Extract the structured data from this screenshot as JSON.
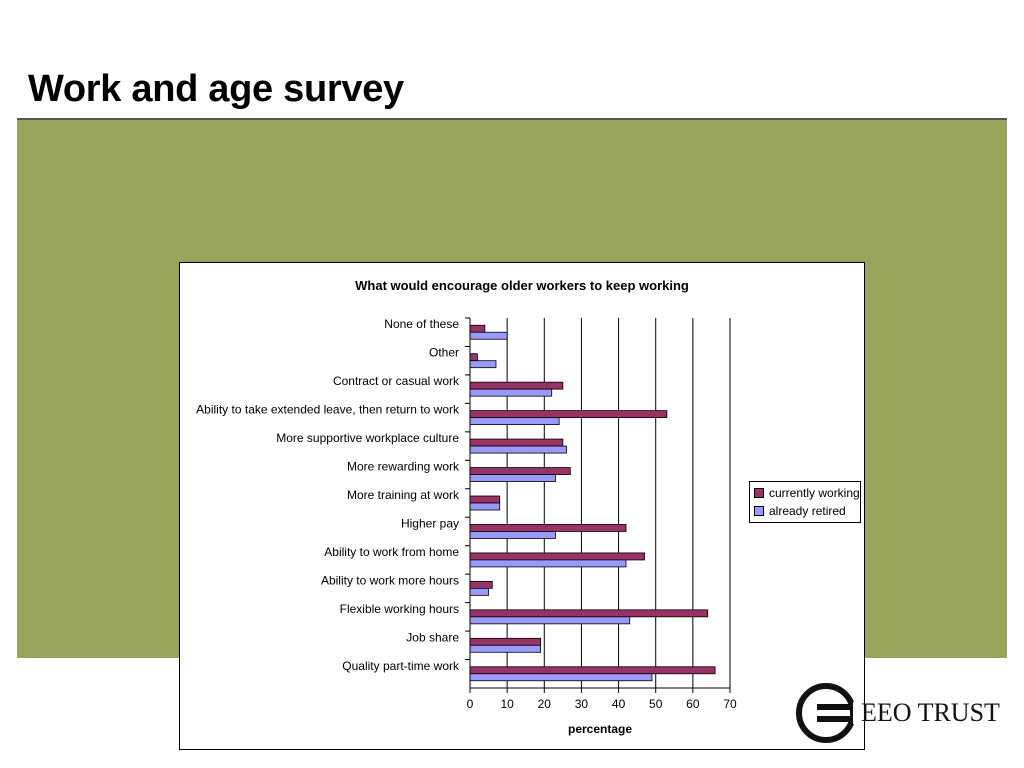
{
  "slide": {
    "title": "Work and age survey",
    "band_color": "#9aa55c"
  },
  "logo": {
    "text": "EEO TRUST",
    "icon": "eeo-trust-e-logo-icon"
  },
  "chart_data": {
    "type": "bar",
    "orientation": "horizontal",
    "title": "What would encourage older workers to keep working",
    "xlabel": "percentage",
    "ylabel": "",
    "xlim": [
      0,
      70
    ],
    "xticks": [
      0,
      10,
      20,
      30,
      40,
      50,
      60,
      70
    ],
    "grid": "vertical",
    "legend_position": "right",
    "categories": [
      "None of these",
      "Other",
      "Contract or casual work",
      "Ability to take extended leave, then return to work",
      "More supportive workplace culture",
      "More rewarding work",
      "More training at work",
      "Higher pay",
      "Ability to work from home",
      "Ability to work more hours",
      "Flexible working hours",
      "Job share",
      "Quality part-time work"
    ],
    "series": [
      {
        "name": "currently working",
        "color": "#993366",
        "values": [
          4,
          2,
          25,
          53,
          25,
          27,
          8,
          42,
          47,
          6,
          64,
          19,
          66
        ]
      },
      {
        "name": "already retired",
        "color": "#9999ff",
        "values": [
          10,
          7,
          22,
          24,
          26,
          23,
          8,
          23,
          42,
          5,
          43,
          19,
          49
        ]
      }
    ]
  }
}
